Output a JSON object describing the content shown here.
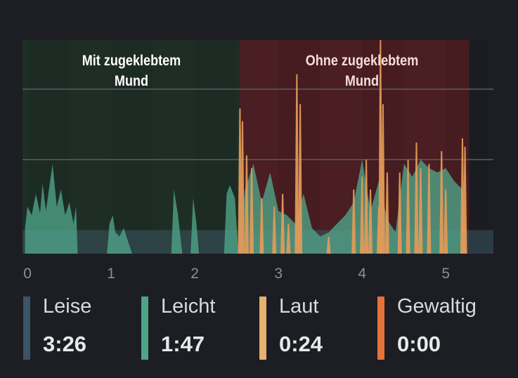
{
  "chart_data": {
    "type": "area",
    "x_ticks": [
      "0",
      "1",
      "2",
      "3",
      "4",
      "5"
    ],
    "xlim": [
      -0.06,
      5.57
    ],
    "ylim": [
      0,
      100
    ],
    "gridlines": [
      44,
      77
    ],
    "baseline_quiet_level": 11,
    "regions": [
      {
        "label_line1": "Mit zugeklebtem",
        "label_line2": "Mund",
        "x_start": -0.06,
        "x_end": 2.54,
        "color": "#1e2e25"
      },
      {
        "label_line1": "Ohne zugeklebtem",
        "label_line2": "Mund",
        "x_start": 2.54,
        "x_end": 5.28,
        "color": "#4a1e22"
      }
    ],
    "series": [
      {
        "name": "Leicht",
        "color": "#4fa387",
        "points": [
          [
            -0.03,
            12
          ],
          [
            0.0,
            22
          ],
          [
            0.05,
            18
          ],
          [
            0.1,
            28
          ],
          [
            0.15,
            19
          ],
          [
            0.18,
            33
          ],
          [
            0.22,
            20
          ],
          [
            0.3,
            42
          ],
          [
            0.35,
            22
          ],
          [
            0.4,
            30
          ],
          [
            0.45,
            18
          ],
          [
            0.5,
            24
          ],
          [
            0.55,
            14
          ],
          [
            0.58,
            22
          ],
          [
            0.6,
            0
          ],
          [
            0.95,
            0
          ],
          [
            0.98,
            14
          ],
          [
            1.02,
            18
          ],
          [
            1.05,
            10
          ],
          [
            1.1,
            8
          ],
          [
            1.15,
            12
          ],
          [
            1.2,
            6
          ],
          [
            1.25,
            0
          ],
          [
            1.72,
            0
          ],
          [
            1.75,
            30
          ],
          [
            1.8,
            18
          ],
          [
            1.85,
            0
          ],
          [
            1.95,
            0
          ],
          [
            1.98,
            26
          ],
          [
            2.02,
            14
          ],
          [
            2.05,
            0
          ],
          [
            2.35,
            0
          ],
          [
            2.38,
            28
          ],
          [
            2.42,
            32
          ],
          [
            2.48,
            26
          ],
          [
            2.52,
            0
          ],
          [
            2.6,
            30
          ],
          [
            2.7,
            42
          ],
          [
            2.8,
            24
          ],
          [
            2.9,
            38
          ],
          [
            3.0,
            20
          ],
          [
            3.1,
            18
          ],
          [
            3.2,
            14
          ],
          [
            3.3,
            28
          ],
          [
            3.4,
            12
          ],
          [
            3.5,
            8
          ],
          [
            3.6,
            10
          ],
          [
            3.7,
            14
          ],
          [
            3.8,
            18
          ],
          [
            3.9,
            24
          ],
          [
            4.0,
            44
          ],
          [
            4.1,
            20
          ],
          [
            4.2,
            34
          ],
          [
            4.3,
            16
          ],
          [
            4.4,
            10
          ],
          [
            4.5,
            42
          ],
          [
            4.6,
            36
          ],
          [
            4.7,
            44
          ],
          [
            4.8,
            40
          ],
          [
            4.9,
            38
          ],
          [
            5.0,
            40
          ],
          [
            5.1,
            34
          ],
          [
            5.2,
            30
          ],
          [
            5.25,
            0
          ]
        ]
      },
      {
        "name": "Laut",
        "color": "#e09a58",
        "spikes": [
          [
            2.54,
            68
          ],
          [
            2.57,
            62
          ],
          [
            2.62,
            46
          ],
          [
            2.68,
            40
          ],
          [
            2.8,
            26
          ],
          [
            2.95,
            22
          ],
          [
            3.05,
            28
          ],
          [
            3.12,
            14
          ],
          [
            3.22,
            84
          ],
          [
            3.26,
            70
          ],
          [
            3.6,
            8
          ],
          [
            3.9,
            30
          ],
          [
            4.0,
            36
          ],
          [
            4.05,
            44
          ],
          [
            4.1,
            30
          ],
          [
            4.2,
            22
          ],
          [
            4.22,
            100
          ],
          [
            4.25,
            70
          ],
          [
            4.3,
            38
          ],
          [
            4.45,
            38
          ],
          [
            4.55,
            44
          ],
          [
            4.65,
            52
          ],
          [
            4.7,
            40
          ],
          [
            4.8,
            42
          ],
          [
            4.95,
            48
          ],
          [
            5.0,
            30
          ],
          [
            5.2,
            54
          ],
          [
            5.23,
            50
          ]
        ]
      }
    ]
  },
  "legend": [
    {
      "name": "Leise",
      "value": "3:26",
      "color": "#3a5563"
    },
    {
      "name": "Leicht",
      "value": "1:47",
      "color": "#4fa387"
    },
    {
      "name": "Laut",
      "value": "0:24",
      "color": "#e6b06e"
    },
    {
      "name": "Gewaltig",
      "value": "0:00",
      "color": "#e6733a"
    }
  ]
}
